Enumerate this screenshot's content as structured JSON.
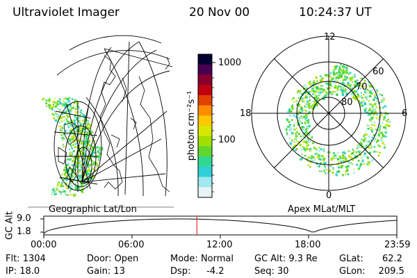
{
  "header": {
    "instrument": "Ultraviolet Imager",
    "date": "20 Nov 00",
    "time": "10:24:37 UT"
  },
  "colorbar": {
    "unit_label": "photon cm⁻²s⁻¹",
    "ticks": [
      "1000",
      "100"
    ],
    "colors": [
      "#000033",
      "#4a0050",
      "#8a0030",
      "#c00010",
      "#e04000",
      "#ff8c00",
      "#ffc800",
      "#d8e800",
      "#a0e000",
      "#60d830",
      "#30d890",
      "#30d0d8",
      "#a0e8f0",
      "#e8f4f4"
    ]
  },
  "geo_panel": {
    "label": "Geographic Lat/Lon"
  },
  "polar_panel": {
    "label": "Apex MLat/MLT",
    "mlt_labels": {
      "top": "12",
      "left": "18",
      "right": "6",
      "bottom": "0"
    },
    "mlat_labels": [
      "60",
      "70",
      "80"
    ]
  },
  "altitude_strip": {
    "ylabel": "GC Alt",
    "y_ticks": [
      "9.0",
      "1.8"
    ],
    "x_ticks": [
      "00:00",
      "06:00",
      "12:00",
      "18:00",
      "23:59"
    ],
    "current_time_hours": 10.41,
    "marker_color": "#e03030"
  },
  "info": {
    "row1": [
      {
        "label": "Flt:",
        "value": "1304"
      },
      {
        "label": "Door:",
        "value": "Open"
      },
      {
        "label": "Mode:",
        "value": "Normal"
      },
      {
        "label": "GC Alt:",
        "value": "9.3 Re"
      },
      {
        "label": "GLat:",
        "value": "62.2"
      }
    ],
    "row2": [
      {
        "label": "IP:",
        "value": "18.0"
      },
      {
        "label": "Gain:",
        "value": "13"
      },
      {
        "label": "Dsp:",
        "value": "-4.2"
      },
      {
        "label": "Seq:",
        "value": "30"
      },
      {
        "label": "GLon:",
        "value": "209.5"
      }
    ]
  }
}
